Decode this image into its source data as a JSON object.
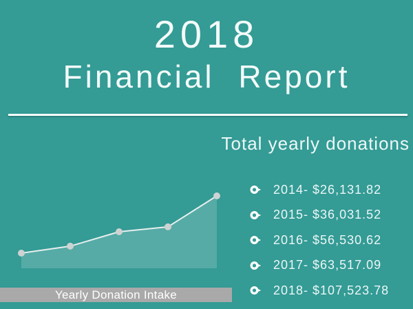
{
  "header": {
    "year": "2018",
    "title": "Financial Report"
  },
  "donations": {
    "heading": "Total yearly donations",
    "items": [
      {
        "label": "2014- $26,131.82"
      },
      {
        "label": "2015- $36,031.52"
      },
      {
        "label": "2016- $56,530.62"
      },
      {
        "label": "2017- $63,517.09"
      },
      {
        "label": "2018- $107,523.78"
      }
    ],
    "bullet_icon": "ring-with-right-pointer"
  },
  "chart_data": {
    "type": "area",
    "title": "Yearly Donation Intake",
    "x": [
      "2014",
      "2015",
      "2016",
      "2017",
      "2018"
    ],
    "values": [
      26131.82,
      36031.52,
      56530.62,
      63517.09,
      107523.78
    ],
    "xlabel": "",
    "ylabel": "",
    "axes_visible": false,
    "grid": false,
    "legend_position": "none",
    "marker": "circle"
  },
  "colors": {
    "background": "#349b95",
    "text": "#f3fbfa",
    "divider": "#fbfdfd",
    "chart_line": "#e8efee",
    "chart_fill": "rgba(255,255,255,0.17)",
    "chart_marker": "#cdd3d2",
    "label_bar": "#a9a9a9",
    "label_bar_text": "#ffffff"
  }
}
